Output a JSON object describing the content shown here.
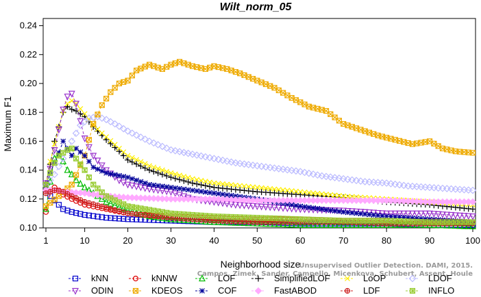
{
  "chart_data": {
    "type": "line",
    "title": "Wilt_norm_05",
    "xlabel": "Neighborhood size",
    "ylabel": "Maximum F1",
    "xlim": [
      1,
      100
    ],
    "ylim": [
      0.1,
      0.245
    ],
    "x_ticks": [
      1,
      10,
      20,
      30,
      40,
      50,
      60,
      70,
      80,
      90,
      100
    ],
    "x_tick_labels": [
      "1",
      "10",
      "20",
      "30",
      "40",
      "50",
      "60",
      "70",
      "80",
      "90",
      "100"
    ],
    "y_ticks": [
      0.1,
      0.12,
      0.14,
      0.16,
      0.18,
      0.2,
      0.22,
      0.24
    ],
    "y_tick_labels": [
      "0.10",
      "0.12",
      "0.14",
      "0.16",
      "0.18",
      "0.20",
      "0.22",
      "0.24"
    ],
    "grid": false,
    "legend_position": "bottom",
    "watermark_lines": [
      "Unsupervised Outlier Detection. DAMI, 2015.",
      "Campos, Zimek, Sander, Campello, Micenkova, Schubert, Assent, Houle"
    ],
    "series": [
      {
        "name": "kNN",
        "color": "#0000cc",
        "marker": "square",
        "points": [
          [
            1,
            0.13
          ],
          [
            2,
            0.122
          ],
          [
            3,
            0.119
          ],
          [
            4,
            0.116
          ],
          [
            5,
            0.113
          ],
          [
            7,
            0.111
          ],
          [
            10,
            0.109
          ],
          [
            15,
            0.107
          ],
          [
            20,
            0.106
          ],
          [
            30,
            0.105
          ],
          [
            40,
            0.104
          ],
          [
            50,
            0.104
          ],
          [
            60,
            0.103
          ],
          [
            70,
            0.103
          ],
          [
            80,
            0.103
          ],
          [
            90,
            0.102
          ],
          [
            100,
            0.102
          ]
        ]
      },
      {
        "name": "kNNW",
        "color": "#dd0000",
        "marker": "circle",
        "points": [
          [
            1,
            0.111
          ],
          [
            2,
            0.125
          ],
          [
            3,
            0.128
          ],
          [
            4,
            0.126
          ],
          [
            5,
            0.123
          ],
          [
            7,
            0.12
          ],
          [
            10,
            0.116
          ],
          [
            15,
            0.113
          ],
          [
            20,
            0.11
          ],
          [
            30,
            0.108
          ],
          [
            40,
            0.107
          ],
          [
            50,
            0.106
          ],
          [
            60,
            0.106
          ],
          [
            70,
            0.105
          ],
          [
            80,
            0.105
          ],
          [
            90,
            0.105
          ],
          [
            100,
            0.104
          ]
        ]
      },
      {
        "name": "LOF",
        "color": "#00bb00",
        "marker": "triangle-up",
        "points": [
          [
            1,
            0.113
          ],
          [
            2,
            0.132
          ],
          [
            3,
            0.148
          ],
          [
            4,
            0.151
          ],
          [
            5,
            0.146
          ],
          [
            6,
            0.14
          ],
          [
            7,
            0.137
          ],
          [
            8,
            0.133
          ],
          [
            10,
            0.128
          ],
          [
            12,
            0.124
          ],
          [
            15,
            0.118
          ],
          [
            20,
            0.112
          ],
          [
            25,
            0.108
          ],
          [
            30,
            0.106
          ],
          [
            40,
            0.104
          ],
          [
            50,
            0.103
          ],
          [
            60,
            0.102
          ],
          [
            70,
            0.102
          ],
          [
            80,
            0.102
          ],
          [
            90,
            0.102
          ],
          [
            100,
            0.101
          ]
        ]
      },
      {
        "name": "SimplifiedLOF",
        "color": "#000000",
        "marker": "plus",
        "points": [
          [
            1,
            0.131
          ],
          [
            2,
            0.144
          ],
          [
            3,
            0.16
          ],
          [
            4,
            0.17
          ],
          [
            5,
            0.18
          ],
          [
            6,
            0.184
          ],
          [
            7,
            0.182
          ],
          [
            8,
            0.181
          ],
          [
            10,
            0.177
          ],
          [
            12,
            0.17
          ],
          [
            15,
            0.161
          ],
          [
            18,
            0.153
          ],
          [
            20,
            0.147
          ],
          [
            25,
            0.14
          ],
          [
            30,
            0.135
          ],
          [
            35,
            0.131
          ],
          [
            40,
            0.128
          ],
          [
            50,
            0.125
          ],
          [
            60,
            0.123
          ],
          [
            70,
            0.121
          ],
          [
            80,
            0.118
          ],
          [
            90,
            0.116
          ],
          [
            100,
            0.113
          ]
        ]
      },
      {
        "name": "LoOP",
        "color": "#ffee00",
        "marker": "x",
        "points": [
          [
            1,
            0.13
          ],
          [
            2,
            0.146
          ],
          [
            3,
            0.158
          ],
          [
            4,
            0.17
          ],
          [
            5,
            0.181
          ],
          [
            6,
            0.186
          ],
          [
            7,
            0.188
          ],
          [
            8,
            0.186
          ],
          [
            10,
            0.179
          ],
          [
            12,
            0.171
          ],
          [
            15,
            0.163
          ],
          [
            18,
            0.155
          ],
          [
            20,
            0.15
          ],
          [
            25,
            0.143
          ],
          [
            30,
            0.138
          ],
          [
            35,
            0.134
          ],
          [
            40,
            0.131
          ],
          [
            50,
            0.128
          ],
          [
            60,
            0.125
          ],
          [
            70,
            0.122
          ],
          [
            80,
            0.12
          ],
          [
            90,
            0.118
          ],
          [
            100,
            0.116
          ]
        ]
      },
      {
        "name": "LDOF",
        "color": "#bbbbff",
        "marker": "diamond",
        "points": [
          [
            1,
            0.129
          ],
          [
            3,
            0.137
          ],
          [
            5,
            0.148
          ],
          [
            7,
            0.16
          ],
          [
            9,
            0.171
          ],
          [
            11,
            0.176
          ],
          [
            13,
            0.177
          ],
          [
            15,
            0.175
          ],
          [
            17,
            0.172
          ],
          [
            20,
            0.167
          ],
          [
            25,
            0.16
          ],
          [
            30,
            0.154
          ],
          [
            35,
            0.151
          ],
          [
            40,
            0.148
          ],
          [
            45,
            0.145
          ],
          [
            50,
            0.143
          ],
          [
            55,
            0.141
          ],
          [
            60,
            0.139
          ],
          [
            65,
            0.136
          ],
          [
            70,
            0.134
          ],
          [
            75,
            0.132
          ],
          [
            80,
            0.131
          ],
          [
            85,
            0.129
          ],
          [
            90,
            0.128
          ],
          [
            95,
            0.127
          ],
          [
            100,
            0.126
          ]
        ]
      },
      {
        "name": "ODIN",
        "color": "#9933cc",
        "marker": "triangle-down",
        "points": [
          [
            1,
            0.131
          ],
          [
            2,
            0.141
          ],
          [
            3,
            0.154
          ],
          [
            4,
            0.168
          ],
          [
            5,
            0.182
          ],
          [
            6,
            0.191
          ],
          [
            7,
            0.193
          ],
          [
            8,
            0.186
          ],
          [
            9,
            0.174
          ],
          [
            10,
            0.162
          ],
          [
            12,
            0.15
          ],
          [
            15,
            0.14
          ],
          [
            18,
            0.133
          ],
          [
            20,
            0.13
          ],
          [
            25,
            0.127
          ],
          [
            30,
            0.125
          ],
          [
            35,
            0.12
          ],
          [
            40,
            0.118
          ],
          [
            45,
            0.116
          ],
          [
            50,
            0.115
          ],
          [
            60,
            0.113
          ],
          [
            70,
            0.112
          ],
          [
            80,
            0.11
          ],
          [
            90,
            0.11
          ],
          [
            100,
            0.108
          ]
        ]
      },
      {
        "name": "KDEOS",
        "color": "#eeaa00",
        "marker": "boxed-x",
        "points": [
          [
            1,
            0.115
          ],
          [
            4,
            0.122
          ],
          [
            7,
            0.13
          ],
          [
            10,
            0.15
          ],
          [
            12,
            0.172
          ],
          [
            14,
            0.185
          ],
          [
            16,
            0.194
          ],
          [
            18,
            0.2
          ],
          [
            20,
            0.202
          ],
          [
            22,
            0.209
          ],
          [
            25,
            0.213
          ],
          [
            28,
            0.21
          ],
          [
            30,
            0.213
          ],
          [
            32,
            0.215
          ],
          [
            35,
            0.212
          ],
          [
            38,
            0.21
          ],
          [
            40,
            0.212
          ],
          [
            43,
            0.21
          ],
          [
            46,
            0.207
          ],
          [
            50,
            0.202
          ],
          [
            54,
            0.197
          ],
          [
            58,
            0.19
          ],
          [
            62,
            0.184
          ],
          [
            66,
            0.181
          ],
          [
            70,
            0.172
          ],
          [
            74,
            0.168
          ],
          [
            78,
            0.164
          ],
          [
            82,
            0.161
          ],
          [
            86,
            0.158
          ],
          [
            90,
            0.16
          ],
          [
            93,
            0.155
          ],
          [
            96,
            0.153
          ],
          [
            100,
            0.152
          ]
        ]
      },
      {
        "name": "COF",
        "color": "#000099",
        "marker": "asterisk",
        "points": [
          [
            1,
            0.128
          ],
          [
            2,
            0.138
          ],
          [
            3,
            0.145
          ],
          [
            4,
            0.152
          ],
          [
            5,
            0.16
          ],
          [
            6,
            0.155
          ],
          [
            7,
            0.15
          ],
          [
            8,
            0.155
          ],
          [
            10,
            0.15
          ],
          [
            12,
            0.142
          ],
          [
            15,
            0.138
          ],
          [
            20,
            0.135
          ],
          [
            25,
            0.13
          ],
          [
            30,
            0.128
          ],
          [
            35,
            0.126
          ],
          [
            40,
            0.124
          ],
          [
            45,
            0.122
          ],
          [
            50,
            0.12
          ],
          [
            60,
            0.115
          ],
          [
            70,
            0.111
          ],
          [
            80,
            0.108
          ],
          [
            90,
            0.106
          ],
          [
            100,
            0.104
          ]
        ]
      },
      {
        "name": "FastABOD",
        "color": "#ffaaff",
        "marker": "diamond-filled",
        "points": [
          [
            1,
            0.126
          ],
          [
            3,
            0.126
          ],
          [
            5,
            0.125
          ],
          [
            10,
            0.124
          ],
          [
            15,
            0.122
          ],
          [
            20,
            0.121
          ],
          [
            30,
            0.12
          ],
          [
            40,
            0.12
          ],
          [
            50,
            0.119
          ],
          [
            60,
            0.119
          ],
          [
            70,
            0.119
          ],
          [
            80,
            0.119
          ],
          [
            90,
            0.118
          ],
          [
            100,
            0.118
          ]
        ]
      },
      {
        "name": "LDF",
        "color": "#cc2222",
        "marker": "circle-plus",
        "points": [
          [
            1,
            0.124
          ],
          [
            3,
            0.126
          ],
          [
            5,
            0.125
          ],
          [
            7,
            0.122
          ],
          [
            10,
            0.118
          ],
          [
            15,
            0.114
          ],
          [
            20,
            0.11
          ],
          [
            30,
            0.107
          ],
          [
            40,
            0.105
          ],
          [
            50,
            0.104
          ],
          [
            60,
            0.104
          ],
          [
            70,
            0.104
          ],
          [
            80,
            0.103
          ],
          [
            90,
            0.103
          ],
          [
            100,
            0.103
          ]
        ]
      },
      {
        "name": "INFLO",
        "color": "#99cc33",
        "marker": "boxed-asterisk",
        "points": [
          [
            1,
            0.13
          ],
          [
            2,
            0.138
          ],
          [
            3,
            0.145
          ],
          [
            4,
            0.15
          ],
          [
            5,
            0.152
          ],
          [
            6,
            0.154
          ],
          [
            7,
            0.155
          ],
          [
            8,
            0.148
          ],
          [
            10,
            0.14
          ],
          [
            12,
            0.13
          ],
          [
            15,
            0.122
          ],
          [
            20,
            0.115
          ],
          [
            30,
            0.11
          ],
          [
            40,
            0.108
          ],
          [
            50,
            0.107
          ],
          [
            60,
            0.106
          ],
          [
            70,
            0.105
          ],
          [
            80,
            0.105
          ],
          [
            90,
            0.104
          ],
          [
            100,
            0.104
          ]
        ]
      }
    ]
  }
}
